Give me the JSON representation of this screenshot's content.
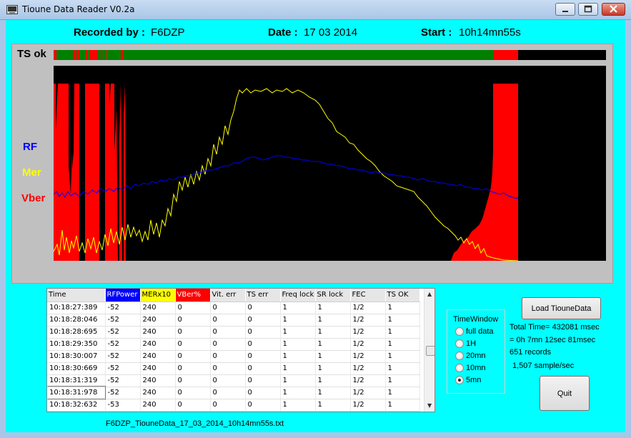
{
  "window": {
    "title": "Tioune Data Reader V0.2a"
  },
  "header": {
    "recorded_label": "Recorded by :",
    "recorded_value": "F6DZP",
    "date_label": "Date :",
    "date_value": "17 03 2014",
    "start_label": "Start :",
    "start_value": "10h14mn55s"
  },
  "plot": {
    "ts_label": "TS ok",
    "rf_label": "RF",
    "mer_label": "Mer",
    "vber_label": "Vber",
    "colors": {
      "rf": "#0000ff",
      "mer": "#ffff00",
      "vber": "#ff0000",
      "ts_ok": "#008000",
      "background": "#000000"
    }
  },
  "table": {
    "columns": [
      "Time",
      "RFPower",
      "MERx10",
      "VBer%",
      "Vit. err",
      "TS err",
      "Freq lock",
      "SR lock",
      "FEC",
      "TS OK"
    ],
    "header_colors": [
      "",
      "#0000ff",
      "#ffff00",
      "#ff0000",
      "",
      "",
      "",
      "",
      "",
      ""
    ],
    "rows": [
      [
        "10:18:27:389",
        "-52",
        "240",
        "0",
        "0",
        "0",
        "1",
        "1",
        "1/2",
        "1"
      ],
      [
        "10:18:28:046",
        "-52",
        "240",
        "0",
        "0",
        "0",
        "1",
        "1",
        "1/2",
        "1"
      ],
      [
        "10:18:28:695",
        "-52",
        "240",
        "0",
        "0",
        "0",
        "1",
        "1",
        "1/2",
        "1"
      ],
      [
        "10:18:29:350",
        "-52",
        "240",
        "0",
        "0",
        "0",
        "1",
        "1",
        "1/2",
        "1"
      ],
      [
        "10:18:30:007",
        "-52",
        "240",
        "0",
        "0",
        "0",
        "1",
        "1",
        "1/2",
        "1"
      ],
      [
        "10:18:30:669",
        "-52",
        "240",
        "0",
        "0",
        "0",
        "1",
        "1",
        "1/2",
        "1"
      ],
      [
        "10:18:31:319",
        "-52",
        "240",
        "0",
        "0",
        "0",
        "1",
        "1",
        "1/2",
        "1"
      ],
      [
        "10:18:31:978",
        "-52",
        "240",
        "0",
        "0",
        "0",
        "1",
        "1",
        "1/2",
        "1"
      ],
      [
        "10:18:32:632",
        "-53",
        "240",
        "0",
        "0",
        "0",
        "1",
        "1",
        "1/2",
        "1"
      ]
    ]
  },
  "filename": "F6DZP_TiouneData_17_03_2014_10h14mn55s.txt",
  "time_window": {
    "legend": "TimeWindow",
    "options": [
      "full data",
      "1H",
      "20mn",
      "10mn",
      "5mn"
    ],
    "selected": "5mn"
  },
  "buttons": {
    "load": "Load TiouneData",
    "quit": "Quit"
  },
  "info": {
    "total_time": "Total Time= 432081 msec",
    "duration": "= 0h 7mn 12sec 81msec",
    "records": "651 records",
    "rate": "1,507 sample/sec"
  }
}
